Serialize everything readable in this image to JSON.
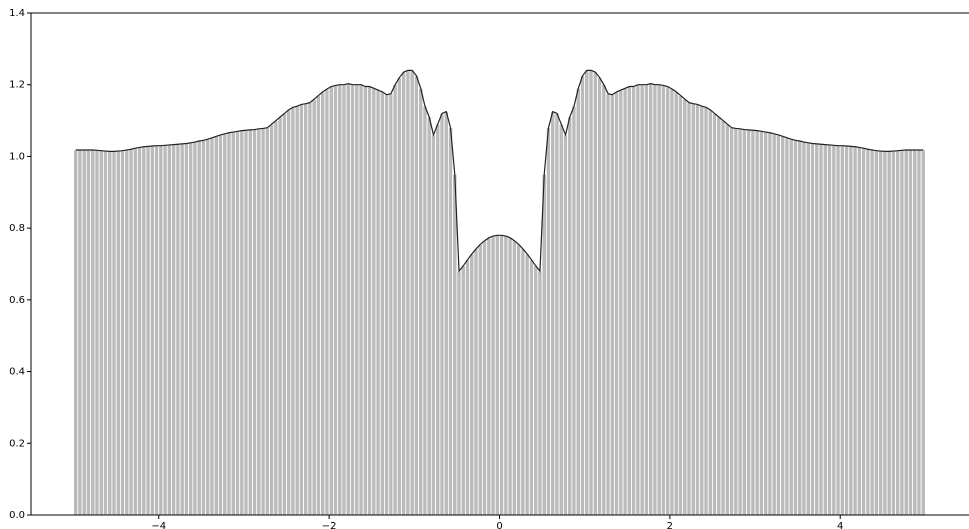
{
  "chart_data": {
    "type": "histogram",
    "color": "#bbbbbb",
    "line_color": "#222222",
    "bins": [
      -5,
      -4.95,
      -4.9,
      -4.85,
      -4.8,
      -4.75,
      -4.7,
      -4.65,
      -4.6,
      -4.55,
      -4.5,
      -4.45,
      -4.4,
      -4.35,
      -4.3,
      -4.25,
      -4.2,
      -4.15,
      -4.1,
      -4.05,
      -4,
      -3.95,
      -3.9,
      -3.85,
      -3.8,
      -3.75,
      -3.7,
      -3.65,
      -3.6,
      -3.55,
      -3.5,
      -3.45,
      -3.4,
      -3.35,
      -3.3,
      -3.25,
      -3.2,
      -3.15,
      -3.1,
      -3.05,
      -3,
      -2.95,
      -2.9,
      -2.85,
      -2.8,
      -2.75,
      -2.7,
      -2.65,
      -2.6,
      -2.55,
      -2.5,
      -2.45,
      -2.4,
      -2.35,
      -2.3,
      -2.25,
      -2.2,
      -2.15,
      -2.1,
      -2.05,
      -2,
      -1.95,
      -1.9,
      -1.85,
      -1.8,
      -1.75,
      -1.7,
      -1.65,
      -1.6,
      -1.55,
      -1.5,
      -1.45,
      -1.4,
      -1.35,
      -1.3,
      -1.25,
      -1.2,
      -1.15,
      -1.1,
      -1.05,
      -1,
      -0.95,
      -0.9,
      -0.85,
      -0.8,
      -0.75,
      -0.7,
      -0.65,
      -0.6,
      -0.55,
      -0.5,
      -0.45,
      -0.4,
      -0.35,
      -0.3,
      -0.25,
      -0.2,
      -0.15,
      -0.1,
      -0.05,
      0,
      0.05,
      0.1,
      0.15,
      0.2,
      0.25,
      0.3,
      0.35,
      0.4,
      0.45,
      0.5,
      0.55,
      0.6,
      0.65,
      0.7,
      0.75,
      0.8,
      0.85,
      0.9,
      0.95,
      1,
      1.05,
      1.1,
      1.15,
      1.2,
      1.25,
      1.3,
      1.35,
      1.4,
      1.45,
      1.5,
      1.55,
      1.6,
      1.65,
      1.7,
      1.75,
      1.8,
      1.85,
      1.9,
      1.95,
      2,
      2.05,
      2.1,
      2.15,
      2.2,
      2.25,
      2.3,
      2.35,
      2.4,
      2.45,
      2.5,
      2.55,
      2.6,
      2.65,
      2.7,
      2.75,
      2.8,
      2.85,
      2.9,
      2.95,
      3,
      3.05,
      3.1,
      3.15,
      3.2,
      3.25,
      3.3,
      3.35,
      3.4,
      3.45,
      3.5,
      3.55,
      3.6,
      3.65,
      3.7,
      3.75,
      3.8,
      3.85,
      3.9,
      3.95,
      4,
      4.05,
      4.1,
      4.15,
      4.2,
      4.25,
      4.3,
      4.35,
      4.4,
      4.45,
      4.5,
      4.55,
      4.6,
      4.65,
      4.7,
      4.75,
      4.8,
      4.85,
      4.9,
      4.95,
      5
    ],
    "values": [
      1.018,
      1.018,
      1.018,
      1.018,
      1.018,
      1.017,
      1.016,
      1.015,
      1.014,
      1.014,
      1.015,
      1.016,
      1.018,
      1.02,
      1.023,
      1.025,
      1.027,
      1.028,
      1.029,
      1.03,
      1.03,
      1.031,
      1.032,
      1.033,
      1.034,
      1.035,
      1.036,
      1.038,
      1.04,
      1.043,
      1.045,
      1.048,
      1.052,
      1.056,
      1.06,
      1.063,
      1.066,
      1.068,
      1.07,
      1.072,
      1.073,
      1.074,
      1.075,
      1.077,
      1.078,
      1.08,
      1.09,
      1.1,
      1.11,
      1.12,
      1.13,
      1.137,
      1.14,
      1.145,
      1.147,
      1.15,
      1.16,
      1.17,
      1.18,
      1.188,
      1.195,
      1.198,
      1.2,
      1.2,
      1.203,
      1.2,
      1.2,
      1.2,
      1.195,
      1.195,
      1.19,
      1.185,
      1.18,
      1.172,
      1.175,
      1.2,
      1.22,
      1.235,
      1.24,
      1.24,
      1.225,
      1.19,
      1.14,
      1.11,
      1.06,
      1.09,
      1.12,
      1.125,
      1.08,
      0.95,
      0.68,
      0.695,
      0.712,
      0.728,
      0.742,
      0.755,
      0.765,
      0.773,
      0.778,
      0.78,
      0.78,
      0.778,
      0.773,
      0.765,
      0.755,
      0.742,
      0.728,
      0.712,
      0.695,
      0.68,
      0.95,
      1.08,
      1.125,
      1.12,
      1.09,
      1.06,
      1.11,
      1.14,
      1.19,
      1.225,
      1.24,
      1.24,
      1.235,
      1.22,
      1.2,
      1.175,
      1.172,
      1.18,
      1.185,
      1.19,
      1.195,
      1.195,
      1.2,
      1.2,
      1.2,
      1.203,
      1.2,
      1.2,
      1.198,
      1.195,
      1.188,
      1.18,
      1.17,
      1.16,
      1.15,
      1.147,
      1.145,
      1.14,
      1.137,
      1.13,
      1.12,
      1.11,
      1.1,
      1.09,
      1.08,
      1.078,
      1.077,
      1.075,
      1.074,
      1.073,
      1.072,
      1.07,
      1.068,
      1.066,
      1.063,
      1.06,
      1.056,
      1.052,
      1.048,
      1.045,
      1.043,
      1.04,
      1.038,
      1.036,
      1.035,
      1.034,
      1.033,
      1.032,
      1.031,
      1.03,
      1.03,
      1.029,
      1.028,
      1.027,
      1.025,
      1.023,
      1.02,
      1.018,
      1.016,
      1.015,
      1.014,
      1.014,
      1.015,
      1.016,
      1.017,
      1.018,
      1.018,
      1.018,
      1.018,
      1.018
    ],
    "xlim": [
      -5.5,
      5.5
    ],
    "ylim": [
      0,
      1.4
    ],
    "xticks": [
      {
        "value": -4,
        "label": "−4"
      },
      {
        "value": -2,
        "label": "−2"
      },
      0,
      2,
      4
    ],
    "yticks": [
      {
        "value": 0,
        "label": "0.0"
      },
      0.2,
      0.4,
      0.6,
      0.8,
      {
        "value": 1,
        "label": "1.0"
      },
      1.2,
      1.4
    ]
  }
}
